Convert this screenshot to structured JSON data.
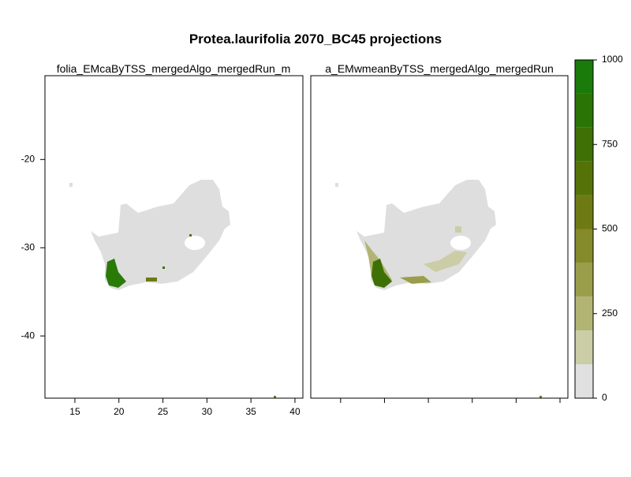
{
  "title": "Protea.laurifolia 2070_BC45 projections",
  "panels": [
    {
      "title": "folia_EMcaByTSS_mergedAlgo_mergedRun_m"
    },
    {
      "title": "a_EMwmeanByTSS_mergedAlgo_mergedRun"
    }
  ],
  "xlim": [
    11.6,
    40.9
  ],
  "ylim": [
    -47.05,
    -10.5
  ],
  "xticks": [
    15,
    20,
    25,
    30,
    35,
    40
  ],
  "yticks": [
    -20,
    -30,
    -40
  ],
  "colorbar": {
    "breaks": [
      0,
      100,
      200,
      300,
      400,
      500,
      600,
      700,
      800,
      900,
      1000
    ],
    "colors": [
      "#e0e0e0",
      "#cbcda6",
      "#b2b473",
      "#9a9e4b",
      "#858a2a",
      "#6e7a14",
      "#557208",
      "#3e7006",
      "#2a7405",
      "#1a7a0a"
    ],
    "ticks": [
      0,
      250,
      500,
      750,
      1000
    ]
  }
}
